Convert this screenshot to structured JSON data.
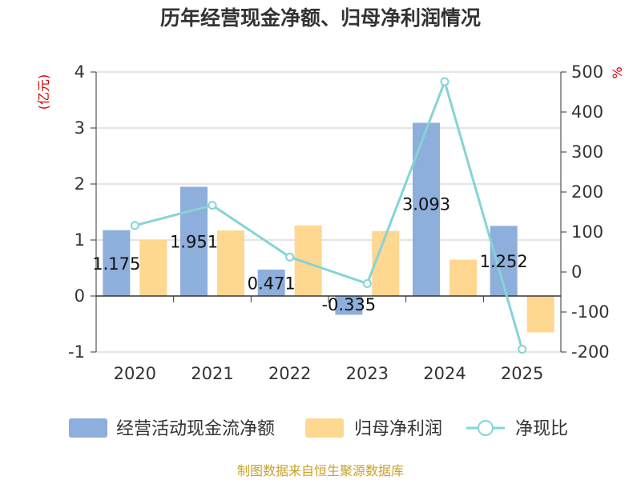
{
  "colors": {
    "cashflow": "#8eaedb",
    "profit": "#fed790",
    "ratio": "#86d4d4",
    "grid": "#c8c8c8",
    "axis": "#333333",
    "unit": "#d40000",
    "source": "#c9a227"
  },
  "chart_data": {
    "type": "bar",
    "title": "历年经营现金净额、归母净利润情况",
    "categories": [
      "2020",
      "2021",
      "2022",
      "2023",
      "2024",
      "2025"
    ],
    "y_left": {
      "unit": "(亿元)",
      "min": -1,
      "max": 4,
      "ticks": [
        "4",
        "3",
        "2",
        "1",
        "0",
        "-1"
      ]
    },
    "y_right": {
      "unit": "%",
      "min": -200,
      "max": 500,
      "ticks": [
        "500",
        "400",
        "300",
        "200",
        "100",
        "0",
        "-100",
        "-200"
      ]
    },
    "series": [
      {
        "name": "经营活动现金流净额",
        "type": "bar",
        "axis": "left",
        "values": [
          1.175,
          1.951,
          0.471,
          -0.335,
          3.093,
          1.252
        ],
        "labels": [
          "1.175",
          "1.951",
          "0.471",
          "-0.335",
          "3.093",
          "1.252"
        ]
      },
      {
        "name": "归母净利润",
        "type": "bar",
        "axis": "left",
        "values": [
          1.01,
          1.17,
          1.26,
          1.16,
          0.65,
          -0.65
        ]
      },
      {
        "name": "净现比",
        "type": "line",
        "axis": "right",
        "values": [
          116.3,
          166.7,
          37.4,
          -28.9,
          475.8,
          -193.1
        ]
      }
    ],
    "grid": true,
    "legend_position": "bottom"
  },
  "source": "制图数据来自恒生聚源数据库"
}
